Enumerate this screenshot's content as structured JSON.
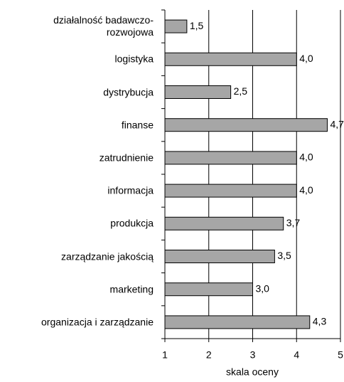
{
  "chart_data": {
    "type": "bar",
    "orientation": "horizontal",
    "categories": [
      "działalność badawczo-rozwojowa",
      "logistyka",
      "dystrybucja",
      "finanse",
      "zatrudnienie",
      "informacja",
      "produkcja",
      "zarządzanie jakością",
      "marketing",
      "organizacja i zarządzanie"
    ],
    "values": [
      1.5,
      4.0,
      2.5,
      4.7,
      4.0,
      4.0,
      3.7,
      3.5,
      3.0,
      4.3
    ],
    "value_labels": [
      "1,5",
      "4,0",
      "2,5",
      "4,7",
      "4,0",
      "4,0",
      "3,7",
      "3,5",
      "3,0",
      "4,3"
    ],
    "color": "#a6a6a6",
    "xlim": [
      1,
      5
    ],
    "xticks": [
      1,
      2,
      3,
      4,
      5
    ],
    "grid": true,
    "x_label": "skala oceny"
  }
}
